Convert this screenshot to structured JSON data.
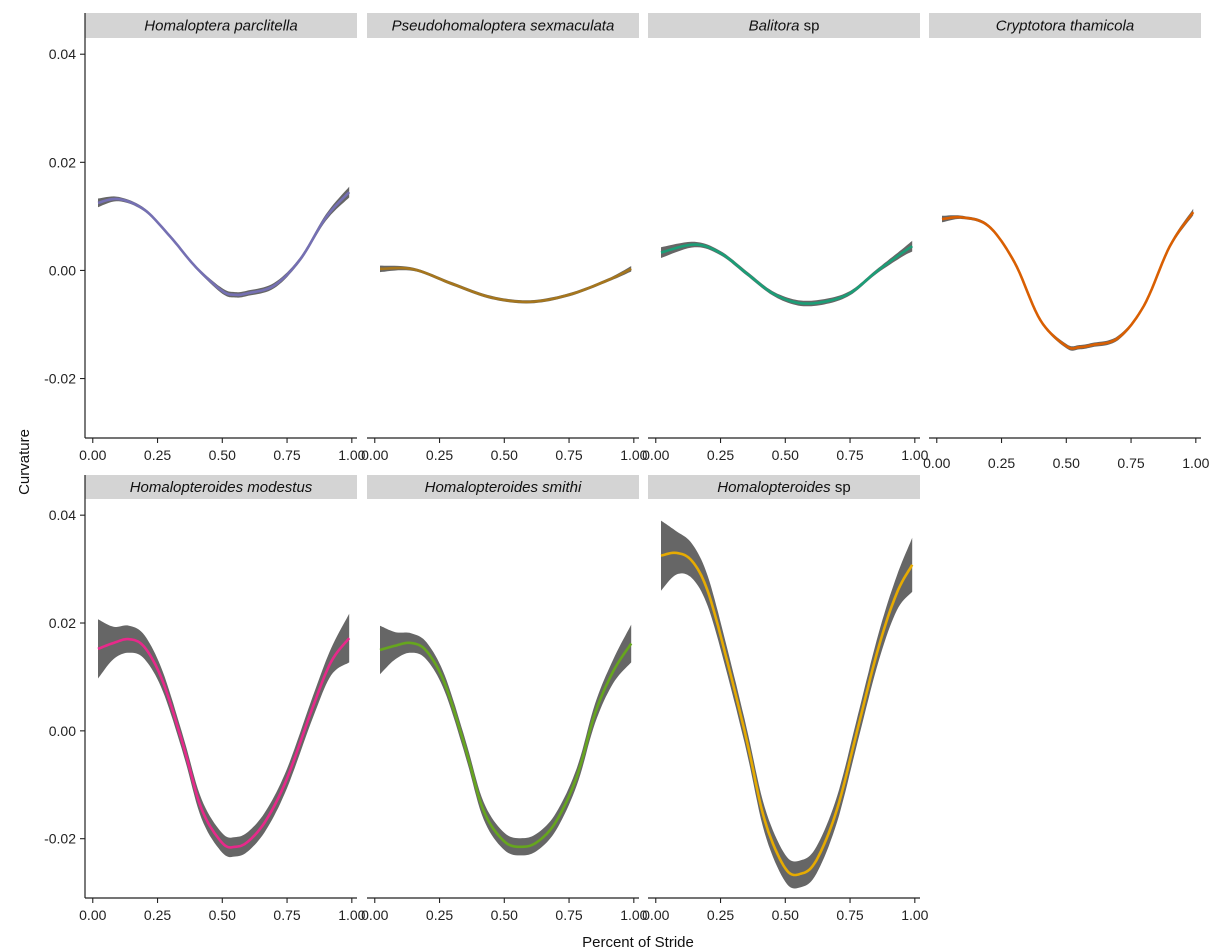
{
  "chart_data": {
    "type": "line",
    "xlabel": "Percent of Stride",
    "ylabel": "Curvature",
    "xlim": [
      -0.03,
      1.02
    ],
    "ylim": [
      -0.031,
      0.043
    ],
    "x_ticks": [
      0,
      0.25,
      0.5,
      0.75,
      1
    ],
    "x_tick_labels": [
      "0.00",
      "0.25",
      "0.50",
      "0.75",
      "1.00"
    ],
    "y_ticks": [
      -0.02,
      0,
      0.02,
      0.04
    ],
    "y_tick_labels": [
      "-0.02",
      "0.00",
      "0.02",
      "0.04"
    ],
    "confidence_band_color": "#666666",
    "panels": [
      {
        "title_italic": "Homaloptera parclitella",
        "title_rest": "",
        "color": "#7570b3",
        "x": [
          0.02,
          0.1,
          0.2,
          0.3,
          0.4,
          0.5,
          0.55,
          0.6,
          0.7,
          0.8,
          0.9,
          0.99
        ],
        "y": [
          0.0125,
          0.0132,
          0.0112,
          0.0062,
          0.0005,
          -0.0038,
          -0.0045,
          -0.0042,
          -0.0028,
          0.002,
          0.0098,
          0.0145
        ],
        "band": [
          0.0008,
          0.0004,
          0.0003,
          0.0003,
          0.0003,
          0.0005,
          0.0005,
          0.0005,
          0.0005,
          0.0004,
          0.0006,
          0.001
        ]
      },
      {
        "title_italic": "Pseudohomaloptera sexmaculata",
        "title_rest": "",
        "color": "#a6761d",
        "x": [
          0.02,
          0.15,
          0.3,
          0.45,
          0.6,
          0.75,
          0.9,
          0.99
        ],
        "y": [
          0.0003,
          0.0002,
          -0.0025,
          -0.005,
          -0.0058,
          -0.0045,
          -0.0018,
          0.0003
        ],
        "band": [
          0.0006,
          0.0003,
          0.0003,
          0.0003,
          0.0003,
          0.0003,
          0.0003,
          0.0005
        ]
      },
      {
        "title_italic": "Balitora",
        "title_rest": " sp",
        "color": "#1b9e77",
        "x": [
          0.02,
          0.15,
          0.25,
          0.35,
          0.45,
          0.55,
          0.65,
          0.75,
          0.85,
          0.95,
          0.99
        ],
        "y": [
          0.0033,
          0.0048,
          0.0032,
          -0.0005,
          -0.0042,
          -0.006,
          -0.0058,
          -0.0042,
          -0.0003,
          0.0032,
          0.0045
        ],
        "band": [
          0.001,
          0.0005,
          0.0004,
          0.0004,
          0.0004,
          0.0005,
          0.0005,
          0.0004,
          0.0004,
          0.0007,
          0.001
        ]
      },
      {
        "title_italic": "Cryptotora thamicola",
        "title_rest": "",
        "color": "#d95f02",
        "x": [
          0.02,
          0.1,
          0.2,
          0.3,
          0.4,
          0.5,
          0.55,
          0.6,
          0.7,
          0.8,
          0.9,
          0.99
        ],
        "y": [
          0.0095,
          0.0098,
          0.0082,
          0.0015,
          -0.0092,
          -0.014,
          -0.0142,
          -0.0138,
          -0.0125,
          -0.0065,
          0.0045,
          0.0108
        ],
        "band": [
          0.0006,
          0.0003,
          0.0003,
          0.0003,
          0.0003,
          0.0004,
          0.0004,
          0.0004,
          0.0004,
          0.0003,
          0.0004,
          0.0006
        ]
      },
      {
        "title_italic": "Homalopteroides modestus",
        "title_rest": "",
        "color": "#e7298a",
        "x": [
          0.02,
          0.08,
          0.14,
          0.2,
          0.27,
          0.35,
          0.42,
          0.5,
          0.55,
          0.6,
          0.67,
          0.75,
          0.85,
          0.92,
          0.99
        ],
        "y": [
          0.0152,
          0.0163,
          0.017,
          0.0155,
          0.0092,
          -0.0028,
          -0.0145,
          -0.0208,
          -0.0215,
          -0.0205,
          -0.0165,
          -0.0088,
          0.0045,
          0.0128,
          0.0172
        ],
        "band": [
          0.0055,
          0.003,
          0.0025,
          0.0022,
          0.0018,
          0.0016,
          0.0018,
          0.0018,
          0.0018,
          0.0018,
          0.0018,
          0.0018,
          0.002,
          0.0025,
          0.0045
        ]
      },
      {
        "title_italic": "Homalopteroides smithi",
        "title_rest": "",
        "color": "#66a61e",
        "x": [
          0.02,
          0.08,
          0.14,
          0.2,
          0.27,
          0.35,
          0.42,
          0.5,
          0.57,
          0.63,
          0.7,
          0.78,
          0.85,
          0.92,
          0.99
        ],
        "y": [
          0.015,
          0.0158,
          0.0163,
          0.0148,
          0.0088,
          -0.0032,
          -0.0148,
          -0.0205,
          -0.0215,
          -0.0205,
          -0.0168,
          -0.0085,
          0.0032,
          0.011,
          0.0162
        ],
        "band": [
          0.0045,
          0.0025,
          0.0018,
          0.0016,
          0.0015,
          0.0015,
          0.0016,
          0.0016,
          0.0016,
          0.0016,
          0.0016,
          0.0016,
          0.0018,
          0.0022,
          0.0035
        ]
      },
      {
        "title_italic": "Homalopteroides",
        "title_rest": " sp",
        "color": "#e6ab02",
        "x": [
          0.02,
          0.08,
          0.14,
          0.2,
          0.27,
          0.35,
          0.42,
          0.5,
          0.56,
          0.62,
          0.7,
          0.78,
          0.86,
          0.93,
          0.99
        ],
        "y": [
          0.0325,
          0.033,
          0.0315,
          0.026,
          0.014,
          -0.0015,
          -0.0165,
          -0.0255,
          -0.0265,
          -0.024,
          -0.0145,
          0.0005,
          0.0155,
          0.0255,
          0.0308
        ],
        "band": [
          0.0065,
          0.004,
          0.0032,
          0.0028,
          0.0024,
          0.0022,
          0.0024,
          0.0025,
          0.0025,
          0.0025,
          0.0024,
          0.0024,
          0.0026,
          0.0032,
          0.005
        ]
      }
    ]
  }
}
